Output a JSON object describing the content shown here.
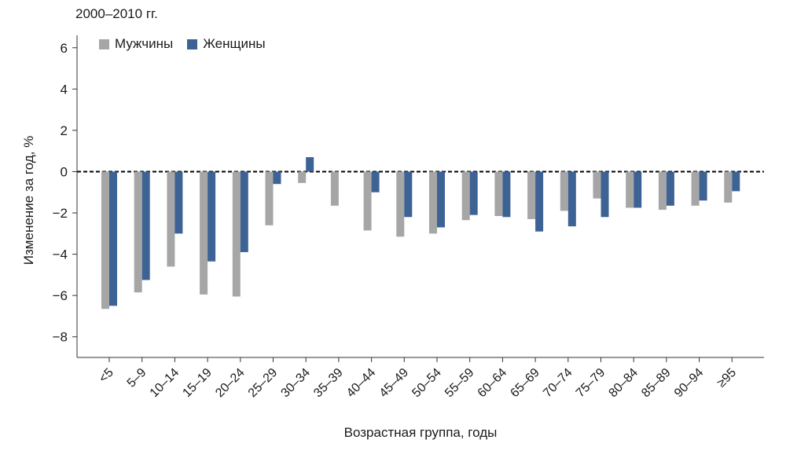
{
  "chart_data": {
    "type": "bar",
    "title": "2000–2010 гг.",
    "xlabel": "Возрастная группа, годы",
    "ylabel": "Изменение за год, %",
    "ylim": [
      -9,
      6.6
    ],
    "yticks": [
      -8,
      -6,
      -4,
      -2,
      0,
      2,
      4,
      6
    ],
    "reference_line": 0,
    "legend_position": "top-left",
    "categories": [
      "<5",
      "5–9",
      "10–14",
      "15–19",
      "20–24",
      "25–29",
      "30–34",
      "35–39",
      "40–44",
      "45–49",
      "50–54",
      "55–59",
      "60–64",
      "65–69",
      "70–74",
      "75–79",
      "80–84",
      "85–89",
      "90–94",
      "≥95"
    ],
    "series": [
      {
        "name": "Мужчины",
        "color": "#a6a6a6",
        "values": [
          -6.65,
          -5.85,
          -4.6,
          -5.95,
          -6.05,
          -2.6,
          -0.55,
          -1.65,
          -2.85,
          -3.15,
          -3.0,
          -2.35,
          -2.15,
          -2.3,
          -1.9,
          -1.3,
          -1.75,
          -1.85,
          -1.65,
          -1.5
        ]
      },
      {
        "name": "Женщины",
        "color": "#3d6294",
        "values": [
          -6.5,
          -5.25,
          -3.0,
          -4.35,
          -3.9,
          -0.6,
          0.7,
          0.0,
          -1.0,
          -2.2,
          -2.7,
          -2.1,
          -2.2,
          -2.9,
          -2.65,
          -2.2,
          -1.75,
          -1.65,
          -1.4,
          -0.95
        ]
      }
    ]
  }
}
